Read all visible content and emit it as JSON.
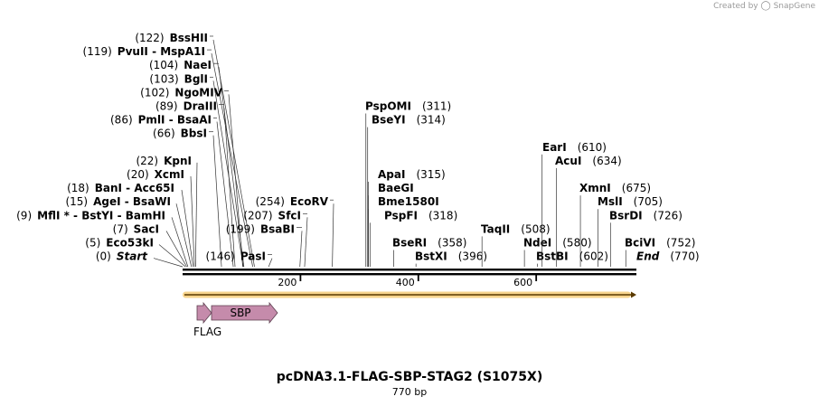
{
  "brand": {
    "created_by": "Created by",
    "product": "SnapGene"
  },
  "map": {
    "title": "pcDNA3.1-FLAG-SBP-STAG2 (S1075X)",
    "length_label": "770 bp",
    "total_bp": 770,
    "ticks": [
      "200",
      "400",
      "600"
    ],
    "tick_values": [
      200,
      400,
      600
    ],
    "colors": {
      "backbone": "#000000",
      "orf": "#f0b030",
      "feature": "#c58bab"
    }
  },
  "sites": [
    {
      "pos": "(122)",
      "names": [
        "BssHII"
      ],
      "bp": 122,
      "row": 0,
      "side": "L"
    },
    {
      "pos": "(119)",
      "names": [
        "PvuII",
        "MspA1I"
      ],
      "bp": 119,
      "row": 1,
      "side": "L"
    },
    {
      "pos": "(104)",
      "names": [
        "NaeI"
      ],
      "bp": 104,
      "row": 2,
      "side": "L"
    },
    {
      "pos": "(103)",
      "names": [
        "BglI"
      ],
      "bp": 103,
      "row": 3,
      "side": "L"
    },
    {
      "pos": "(102)",
      "names": [
        "NgoMIV"
      ],
      "bp": 102,
      "row": 4,
      "side": "L"
    },
    {
      "pos": "(89)",
      "names": [
        "DraIII"
      ],
      "bp": 89,
      "row": 5,
      "side": "L"
    },
    {
      "pos": "(86)",
      "names": [
        "PmlI",
        "BsaAI"
      ],
      "bp": 86,
      "row": 6,
      "side": "L"
    },
    {
      "pos": "(66)",
      "names": [
        "BbsI"
      ],
      "bp": 66,
      "row": 7,
      "side": "L"
    },
    {
      "pos": "(22)",
      "names": [
        "KpnI"
      ],
      "bp": 22,
      "row": 9,
      "side": "L"
    },
    {
      "pos": "(20)",
      "names": [
        "XcmI"
      ],
      "bp": 20,
      "row": 10,
      "side": "L"
    },
    {
      "pos": "(18)",
      "names": [
        "BanI",
        "Acc65I"
      ],
      "bp": 18,
      "row": 11,
      "side": "L"
    },
    {
      "pos": "(15)",
      "names": [
        "AgeI",
        "BsaWI"
      ],
      "bp": 15,
      "row": 12,
      "side": "L"
    },
    {
      "pos": "(9)",
      "names": [
        "MflI *",
        "BstYI",
        "BamHI"
      ],
      "bp": 9,
      "row": 13,
      "side": "L"
    },
    {
      "pos": "(7)",
      "names": [
        "SacI"
      ],
      "bp": 7,
      "row": 14,
      "side": "L"
    },
    {
      "pos": "(5)",
      "names": [
        "Eco53kI"
      ],
      "bp": 5,
      "row": 15,
      "side": "L"
    },
    {
      "pos": "(0)",
      "names": [
        "Start"
      ],
      "bp": 0,
      "row": 16,
      "side": "L",
      "italic": true
    },
    {
      "pos": "(254)",
      "names": [
        "EcoRV"
      ],
      "bp": 254,
      "row": 12,
      "side": "L"
    },
    {
      "pos": "(207)",
      "names": [
        "SfcI"
      ],
      "bp": 207,
      "row": 13,
      "side": "L"
    },
    {
      "pos": "(199)",
      "names": [
        "BsaBI"
      ],
      "bp": 199,
      "row": 14,
      "side": "L"
    },
    {
      "pos": "(146)",
      "names": [
        "PasI"
      ],
      "bp": 146,
      "row": 16,
      "side": "L"
    },
    {
      "pos": "(311)",
      "names": [
        "PspOMI"
      ],
      "bp": 311,
      "row": 5,
      "side": "R"
    },
    {
      "pos": "(314)",
      "names": [
        "BseYI"
      ],
      "bp": 314,
      "row": 6,
      "side": "R"
    },
    {
      "pos": "(315)",
      "names": [
        "ApaI"
      ],
      "bp": 315,
      "row": 10,
      "side": "R"
    },
    {
      "pos": "",
      "names": [
        "BaeGI"
      ],
      "bp": 315,
      "row": 11,
      "side": "R"
    },
    {
      "pos": "",
      "names": [
        "Bme1580I"
      ],
      "bp": 315,
      "row": 12,
      "side": "R"
    },
    {
      "pos": "(318)",
      "names": [
        "PspFI"
      ],
      "bp": 318,
      "row": 13,
      "side": "R"
    },
    {
      "pos": "(358)",
      "names": [
        "BseRI"
      ],
      "bp": 358,
      "row": 15,
      "side": "R"
    },
    {
      "pos": "(396)",
      "names": [
        "BstXI"
      ],
      "bp": 396,
      "row": 16,
      "side": "R"
    },
    {
      "pos": "(508)",
      "names": [
        "TaqII"
      ],
      "bp": 508,
      "row": 14,
      "side": "R"
    },
    {
      "pos": "(580)",
      "names": [
        "NdeI"
      ],
      "bp": 580,
      "row": 15,
      "side": "R"
    },
    {
      "pos": "(602)",
      "names": [
        "BstBI"
      ],
      "bp": 602,
      "row": 16,
      "side": "R"
    },
    {
      "pos": "(610)",
      "names": [
        "EarI"
      ],
      "bp": 610,
      "row": 8,
      "side": "R"
    },
    {
      "pos": "(634)",
      "names": [
        "AcuI"
      ],
      "bp": 634,
      "row": 9,
      "side": "R"
    },
    {
      "pos": "(675)",
      "names": [
        "XmnI"
      ],
      "bp": 675,
      "row": 11,
      "side": "R"
    },
    {
      "pos": "(705)",
      "names": [
        "MslI"
      ],
      "bp": 705,
      "row": 12,
      "side": "R"
    },
    {
      "pos": "(726)",
      "names": [
        "BsrDI"
      ],
      "bp": 726,
      "row": 13,
      "side": "R"
    },
    {
      "pos": "(752)",
      "names": [
        "BciVI"
      ],
      "bp": 752,
      "row": 15,
      "side": "R"
    },
    {
      "pos": "(770)",
      "names": [
        "End"
      ],
      "bp": 770,
      "row": 16,
      "side": "R",
      "italic": true
    }
  ],
  "features": [
    {
      "name": "FLAG",
      "start_bp": 25,
      "end_bp": 48,
      "label_below": true
    },
    {
      "name": "SBP",
      "start_bp": 49,
      "end_bp": 163,
      "label_below": false
    }
  ],
  "orf": {
    "start_bp": 0,
    "end_bp": 770,
    "direction": "forward"
  }
}
